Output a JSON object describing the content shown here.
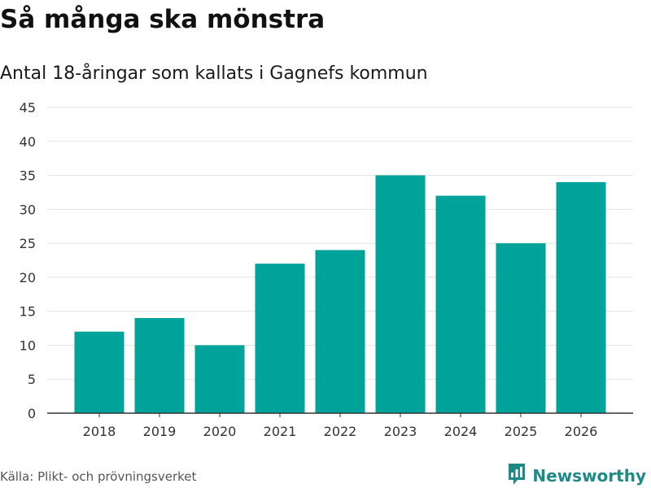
{
  "header": {
    "title": "Så många ska mönstra",
    "subtitle": "Antal 18-åringar som kallats i Gagnefs kommun"
  },
  "footer": {
    "source": "Källa: Plikt- och prövningsverket",
    "brand": "Newsworthy"
  },
  "colors": {
    "bar": "#00a39a",
    "grid": "#e3e3e3",
    "axis": "#333333",
    "brand": "#1e8a86"
  },
  "icons": {
    "brand_logo": "bar-chart-speech-bubble-icon"
  },
  "chart_data": {
    "type": "bar",
    "title": "Så många ska mönstra",
    "subtitle": "Antal 18-åringar som kallats i Gagnefs kommun",
    "xlabel": "",
    "ylabel": "",
    "categories": [
      "2018",
      "2019",
      "2020",
      "2021",
      "2022",
      "2023",
      "2024",
      "2025",
      "2026"
    ],
    "values": [
      12,
      14,
      10,
      22,
      24,
      35,
      32,
      25,
      34
    ],
    "ylim": [
      0,
      45
    ],
    "yticks": [
      0,
      5,
      10,
      15,
      20,
      25,
      30,
      35,
      40,
      45
    ],
    "grid": true,
    "legend": "none"
  }
}
